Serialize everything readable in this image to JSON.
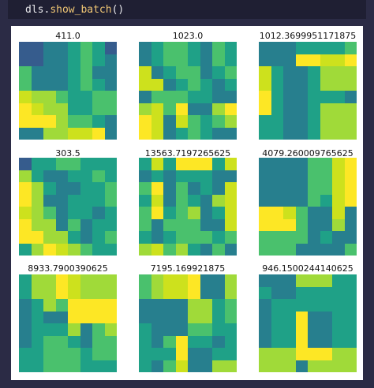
{
  "code": {
    "object": "dls",
    "method": "show_batch",
    "args": "()"
  },
  "batch": {
    "colormap": "viridis",
    "items": [
      {
        "title": "411.0",
        "cells": [
          [
            2,
            2,
            3,
            3,
            4,
            5,
            4,
            2
          ],
          [
            2,
            2,
            3,
            3,
            4,
            5,
            4,
            3
          ],
          [
            5,
            3,
            3,
            3,
            4,
            5,
            3,
            3
          ],
          [
            5,
            3,
            3,
            3,
            4,
            5,
            4,
            3
          ],
          [
            7,
            6,
            6,
            5,
            4,
            4,
            5,
            5
          ],
          [
            8,
            7,
            6,
            6,
            4,
            4,
            5,
            5
          ],
          [
            8,
            8,
            8,
            6,
            5,
            5,
            4,
            3
          ],
          [
            3,
            3,
            6,
            6,
            7,
            7,
            8,
            3
          ]
        ]
      },
      {
        "title": "1023.0",
        "cells": [
          [
            3,
            4,
            5,
            5,
            4,
            3,
            5,
            4
          ],
          [
            3,
            4,
            5,
            5,
            4,
            3,
            5,
            4
          ],
          [
            7,
            3,
            4,
            5,
            5,
            3,
            4,
            5
          ],
          [
            7,
            7,
            3,
            4,
            5,
            4,
            3,
            4
          ],
          [
            3,
            5,
            5,
            5,
            4,
            4,
            3,
            3
          ],
          [
            6,
            7,
            5,
            8,
            3,
            3,
            6,
            8
          ],
          [
            8,
            7,
            3,
            7,
            5,
            4,
            5,
            6
          ],
          [
            8,
            7,
            3,
            4,
            5,
            4,
            3,
            3
          ]
        ]
      },
      {
        "title": "1012.3699951171875",
        "cells": [
          [
            3,
            3,
            3,
            4,
            4,
            4,
            4,
            5
          ],
          [
            3,
            3,
            3,
            8,
            8,
            7,
            7,
            8
          ],
          [
            7,
            4,
            3,
            3,
            4,
            6,
            6,
            6
          ],
          [
            7,
            4,
            3,
            3,
            4,
            6,
            6,
            6
          ],
          [
            8,
            4,
            3,
            3,
            4,
            4,
            4,
            3
          ],
          [
            8,
            4,
            3,
            3,
            4,
            6,
            6,
            6
          ],
          [
            4,
            4,
            3,
            3,
            4,
            6,
            6,
            6
          ],
          [
            4,
            4,
            3,
            3,
            4,
            6,
            6,
            6
          ]
        ]
      },
      {
        "title": "303.5",
        "cells": [
          [
            2,
            4,
            4,
            5,
            5,
            4,
            4,
            4
          ],
          [
            6,
            4,
            3,
            3,
            4,
            4,
            5,
            4
          ],
          [
            8,
            6,
            4,
            3,
            3,
            4,
            4,
            5
          ],
          [
            8,
            6,
            3,
            3,
            4,
            4,
            4,
            5
          ],
          [
            7,
            6,
            5,
            3,
            4,
            4,
            3,
            4
          ],
          [
            8,
            6,
            6,
            3,
            5,
            3,
            4,
            4
          ],
          [
            8,
            8,
            6,
            6,
            4,
            3,
            4,
            5
          ],
          [
            4,
            6,
            8,
            7,
            6,
            5,
            4,
            4
          ]
        ]
      },
      {
        "title": "13563.7197265625",
        "cells": [
          [
            4,
            7,
            4,
            8,
            8,
            8,
            4,
            7
          ],
          [
            3,
            4,
            3,
            4,
            4,
            4,
            3,
            3
          ],
          [
            5,
            8,
            3,
            5,
            3,
            4,
            3,
            7
          ],
          [
            4,
            7,
            3,
            5,
            4,
            3,
            6,
            7
          ],
          [
            5,
            8,
            4,
            5,
            6,
            3,
            4,
            7
          ],
          [
            5,
            3,
            5,
            5,
            5,
            3,
            3,
            7
          ],
          [
            4,
            3,
            4,
            5,
            5,
            5,
            4,
            5
          ],
          [
            6,
            7,
            5,
            6,
            4,
            3,
            5,
            3
          ]
        ]
      },
      {
        "title": "4079.260009765625",
        "cells": [
          [
            3,
            3,
            3,
            3,
            5,
            5,
            7,
            8
          ],
          [
            3,
            3,
            3,
            3,
            5,
            5,
            7,
            8
          ],
          [
            3,
            3,
            3,
            3,
            5,
            5,
            7,
            8
          ],
          [
            3,
            3,
            3,
            3,
            5,
            4,
            7,
            8
          ],
          [
            8,
            8,
            7,
            5,
            3,
            3,
            7,
            3
          ],
          [
            8,
            8,
            8,
            5,
            3,
            3,
            6,
            3
          ],
          [
            5,
            5,
            5,
            5,
            3,
            4,
            3,
            3
          ],
          [
            5,
            5,
            5,
            3,
            3,
            3,
            3,
            5
          ]
        ]
      },
      {
        "title": "8933.7900390625",
        "cells": [
          [
            4,
            6,
            6,
            8,
            7,
            6,
            6,
            6
          ],
          [
            4,
            6,
            6,
            8,
            7,
            6,
            6,
            6
          ],
          [
            3,
            4,
            6,
            5,
            8,
            8,
            8,
            8
          ],
          [
            3,
            4,
            3,
            3,
            8,
            8,
            8,
            8
          ],
          [
            3,
            4,
            4,
            4,
            6,
            3,
            5,
            6
          ],
          [
            3,
            4,
            5,
            5,
            4,
            3,
            5,
            5
          ],
          [
            4,
            4,
            5,
            5,
            5,
            4,
            5,
            5
          ],
          [
            4,
            4,
            5,
            5,
            5,
            4,
            4,
            4
          ]
        ]
      },
      {
        "title": "7195.169921875",
        "cells": [
          [
            5,
            6,
            7,
            7,
            8,
            3,
            3,
            6
          ],
          [
            5,
            6,
            7,
            7,
            8,
            3,
            3,
            6
          ],
          [
            3,
            3,
            3,
            3,
            6,
            6,
            4,
            5
          ],
          [
            3,
            3,
            3,
            3,
            6,
            6,
            4,
            5
          ],
          [
            4,
            3,
            3,
            3,
            5,
            5,
            4,
            4
          ],
          [
            4,
            3,
            5,
            8,
            4,
            4,
            3,
            4
          ],
          [
            4,
            4,
            4,
            8,
            3,
            3,
            4,
            4
          ],
          [
            4,
            3,
            5,
            7,
            3,
            3,
            6,
            6
          ]
        ]
      },
      {
        "title": "946.1500244140625",
        "cells": [
          [
            3,
            3,
            3,
            6,
            6,
            6,
            4,
            4
          ],
          [
            4,
            3,
            3,
            4,
            4,
            4,
            4,
            4
          ],
          [
            3,
            4,
            4,
            4,
            4,
            4,
            4,
            4
          ],
          [
            3,
            4,
            4,
            8,
            3,
            3,
            4,
            4
          ],
          [
            3,
            4,
            4,
            8,
            3,
            3,
            4,
            4
          ],
          [
            3,
            4,
            4,
            8,
            3,
            3,
            4,
            4
          ],
          [
            6,
            6,
            6,
            8,
            8,
            8,
            6,
            6
          ],
          [
            6,
            6,
            6,
            3,
            6,
            6,
            6,
            6
          ]
        ]
      }
    ]
  }
}
